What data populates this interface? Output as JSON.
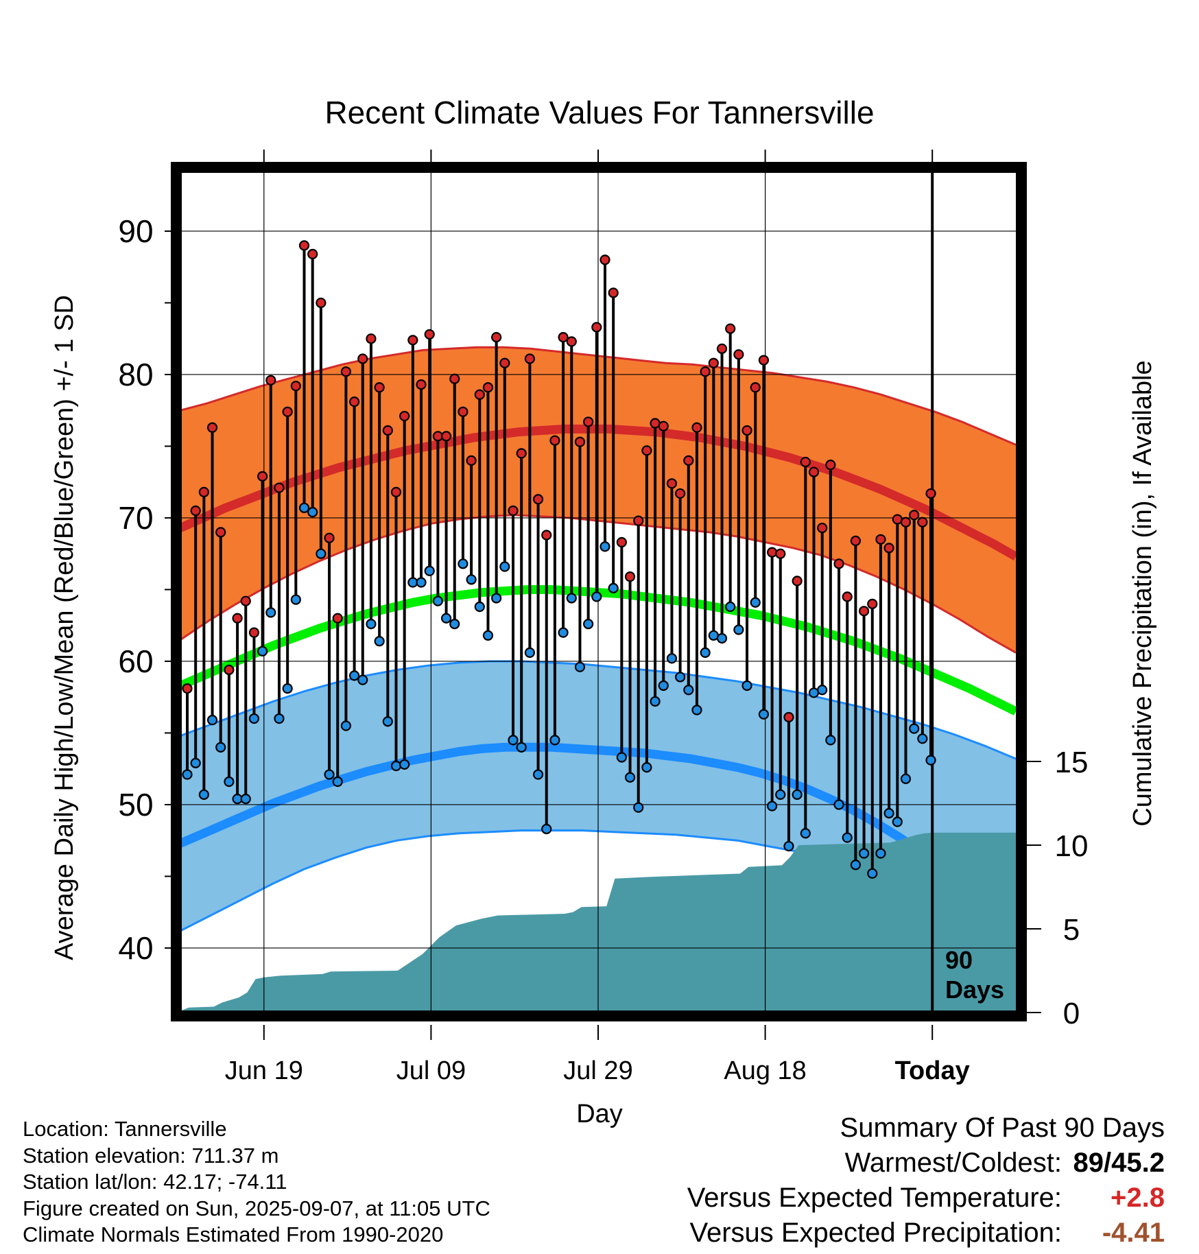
{
  "title": "Recent Climate Values For Tannersville",
  "y_label_left": "Average Daily High/Low/Mean (Red/Blue/Green) +/- 1 SD",
  "y_label_right": "Cumulative Precipitation (in), If Available",
  "x_label": "Day",
  "today_marker": {
    "line1": "90",
    "line2": "Days"
  },
  "info": {
    "location": "Location: Tannersville",
    "elevation": "Station elevation: 711.37 m",
    "latlon": "Station lat/lon: 42.17; -74.11",
    "created": "Figure created on Sun, 2025-09-07, at 11:05 UTC",
    "normals": "Climate Normals Estimated From 1990-2020"
  },
  "summary": {
    "title": "Summary Of Past 90 Days",
    "warm_cold_label": "Warmest/Coldest:",
    "warm_cold_value": "89/45.2",
    "temp_label": "Versus Expected Temperature:",
    "temp_value": "+2.8",
    "precip_label": "Versus Expected Precipitation:",
    "precip_value": "-4.41",
    "temp_color": "#d62728",
    "precip_color": "#a0522d"
  },
  "colors": {
    "high_band": "#f47a30",
    "high_line": "#d42a2a",
    "low_band": "#82c0e6",
    "low_line": "#1c8cff",
    "mean_line": "#00ee00",
    "precip_fill": "#4a9aa5",
    "high_dot": "#d62728",
    "low_dot": "#1f8ce0"
  },
  "chart_data": {
    "type": "line",
    "x_ticks": [
      {
        "label": "Jun 19",
        "day": 10
      },
      {
        "label": "Jul 09",
        "day": 30
      },
      {
        "label": "Jul 29",
        "day": 50
      },
      {
        "label": "Aug 18",
        "day": 70
      },
      {
        "label": "Today",
        "day": 90
      }
    ],
    "xlim": [
      0,
      100
    ],
    "y_left_ticks": [
      40,
      50,
      60,
      70,
      80,
      90
    ],
    "y_left_lim": [
      35.5,
      94.5
    ],
    "y_right_ticks": [
      0,
      5,
      10,
      15
    ],
    "y_right_lim": [
      0,
      40
    ],
    "daily_high": [
      58.1,
      70.5,
      71.8,
      76.3,
      69.0,
      59.4,
      63.0,
      64.2,
      62.0,
      72.9,
      79.6,
      72.1,
      77.4,
      79.2,
      89.0,
      88.4,
      85.0,
      68.6,
      63.0,
      80.2,
      78.1,
      81.1,
      82.5,
      79.1,
      76.1,
      71.8,
      77.1,
      82.4,
      79.3,
      82.8,
      75.7,
      75.7,
      79.7,
      77.4,
      74.0,
      78.6,
      79.1,
      82.6,
      80.8,
      70.5,
      74.5,
      81.1,
      71.3,
      68.8,
      75.4,
      82.6,
      82.3,
      75.3,
      76.7,
      83.3,
      88.0,
      85.7,
      68.3,
      65.9,
      69.8,
      74.7,
      76.6,
      76.4,
      72.4,
      71.7,
      74.0,
      76.3,
      80.2,
      80.8,
      81.8,
      83.2,
      81.4,
      76.1,
      79.1,
      81.0,
      67.6,
      67.5,
      56.1,
      65.6,
      73.9,
      73.2,
      69.3,
      73.7,
      66.8,
      64.5,
      68.4,
      63.5,
      64.0,
      68.5,
      67.9,
      69.9,
      69.7,
      70.2,
      69.7,
      71.7
    ],
    "daily_low": [
      52.1,
      52.9,
      50.7,
      55.9,
      54.0,
      51.6,
      50.4,
      50.4,
      56.0,
      60.7,
      63.4,
      56.0,
      58.1,
      64.3,
      70.7,
      70.4,
      67.5,
      52.1,
      51.6,
      55.5,
      59.0,
      58.7,
      62.6,
      61.4,
      55.8,
      52.7,
      52.8,
      65.5,
      65.5,
      66.3,
      64.2,
      63.0,
      62.6,
      66.8,
      65.7,
      63.8,
      61.8,
      64.4,
      66.6,
      54.5,
      54.0,
      60.6,
      52.1,
      48.3,
      54.5,
      62.0,
      64.4,
      59.6,
      62.6,
      64.5,
      68.0,
      65.1,
      53.3,
      51.9,
      49.8,
      52.6,
      57.2,
      58.3,
      60.2,
      58.9,
      58.0,
      56.6,
      60.6,
      61.8,
      61.6,
      63.8,
      62.2,
      58.3,
      64.1,
      56.3,
      49.9,
      50.7,
      47.1,
      50.7,
      48.0,
      57.8,
      58.0,
      54.5,
      50.0,
      47.7,
      45.8,
      46.6,
      45.2,
      46.6,
      49.4,
      48.8,
      51.8,
      55.3,
      54.6,
      53.1
    ],
    "normal_high": [
      69.3,
      70.0,
      70.7,
      71.3,
      71.9,
      72.5,
      73.0,
      73.5,
      73.9,
      74.3,
      74.7,
      75.0,
      75.3,
      75.6,
      75.8,
      76.0,
      76.1,
      76.2,
      76.2,
      76.2,
      76.1,
      76.0,
      75.8,
      75.6,
      75.3,
      75.0,
      74.6,
      74.2,
      73.7,
      73.2,
      72.6,
      72.0,
      71.3,
      70.6,
      69.8,
      69.0,
      68.2,
      67.3
    ],
    "normal_high_sd_upper": [
      77.5,
      78.0,
      78.6,
      79.2,
      79.7,
      80.2,
      80.7,
      81.1,
      81.4,
      81.7,
      81.8,
      81.9,
      81.9,
      81.8,
      81.6,
      81.4,
      81.2,
      81.0,
      80.8,
      80.7,
      80.5,
      80.3,
      80.1,
      79.8,
      79.5,
      79.1,
      78.6,
      78.0,
      77.4,
      76.7,
      75.9,
      75.1
    ],
    "normal_high_sd_lower": [
      61.5,
      62.8,
      64.0,
      65.1,
      66.1,
      67.0,
      67.8,
      68.5,
      69.1,
      69.6,
      69.9,
      70.1,
      70.2,
      70.1,
      70.0,
      69.8,
      69.6,
      69.4,
      69.2,
      69.0,
      68.7,
      68.3,
      67.9,
      67.4,
      66.7,
      65.9,
      65.0,
      64.0,
      62.9,
      61.7,
      60.6
    ],
    "normal_mean": [
      58.3,
      59.0,
      59.7,
      60.4,
      61.1,
      61.7,
      62.3,
      62.8,
      63.3,
      63.7,
      64.1,
      64.4,
      64.6,
      64.8,
      64.9,
      65.0,
      65.0,
      64.9,
      64.8,
      64.7,
      64.5,
      64.3,
      64.1,
      63.8,
      63.5,
      63.2,
      62.8,
      62.4,
      61.9,
      61.4,
      60.8,
      60.2,
      59.5,
      58.8,
      58.1,
      57.3,
      56.5
    ],
    "normal_low": [
      47.3,
      48.0,
      48.7,
      49.4,
      50.1,
      50.7,
      51.3,
      51.8,
      52.3,
      52.7,
      53.1,
      53.4,
      53.7,
      53.9,
      54.0,
      54.0,
      54.0,
      53.9,
      53.8,
      53.7,
      53.6,
      53.4,
      53.2,
      52.9,
      52.6,
      52.2,
      51.7,
      51.1,
      50.4,
      49.6,
      48.7,
      47.7,
      46.6,
      45.5,
      44.3,
      43.1,
      41.9
    ],
    "normal_low_sd_upper": [
      54.8,
      55.6,
      56.4,
      57.2,
      57.9,
      58.5,
      59.0,
      59.4,
      59.7,
      59.9,
      60.0,
      60.0,
      59.9,
      59.8,
      59.6,
      59.4,
      59.2,
      58.9,
      58.6,
      58.2,
      57.8,
      57.3,
      56.8,
      56.2,
      55.6,
      54.9,
      54.1,
      53.2
    ],
    "normal_low_sd_lower": [
      41.2,
      42.3,
      43.4,
      44.5,
      45.5,
      46.3,
      47.0,
      47.5,
      47.8,
      48.0,
      48.1,
      48.2,
      48.2,
      48.2,
      48.1,
      48.0,
      47.9,
      47.7,
      47.5,
      47.1,
      46.7,
      46.2,
      45.6,
      45.0,
      44.3,
      43.6,
      42.9,
      42.2
    ],
    "precip_cumulative": [
      {
        "day": 0,
        "value": 0.1
      },
      {
        "day": 1,
        "value": 0.3
      },
      {
        "day": 4,
        "value": 0.35
      },
      {
        "day": 5,
        "value": 0.6
      },
      {
        "day": 7,
        "value": 0.9
      },
      {
        "day": 8,
        "value": 1.2
      },
      {
        "day": 9,
        "value": 2.0
      },
      {
        "day": 10,
        "value": 2.1
      },
      {
        "day": 12,
        "value": 2.2
      },
      {
        "day": 17,
        "value": 2.3
      },
      {
        "day": 18,
        "value": 2.45
      },
      {
        "day": 26,
        "value": 2.5
      },
      {
        "day": 29,
        "value": 3.5
      },
      {
        "day": 31,
        "value": 4.5
      },
      {
        "day": 33,
        "value": 5.2
      },
      {
        "day": 36,
        "value": 5.6
      },
      {
        "day": 38,
        "value": 5.8
      },
      {
        "day": 46,
        "value": 5.9
      },
      {
        "day": 47,
        "value": 6.0
      },
      {
        "day": 48,
        "value": 6.3
      },
      {
        "day": 51,
        "value": 6.35
      },
      {
        "day": 52,
        "value": 8.0
      },
      {
        "day": 56,
        "value": 8.1
      },
      {
        "day": 67,
        "value": 8.3
      },
      {
        "day": 68,
        "value": 8.7
      },
      {
        "day": 72,
        "value": 8.8
      },
      {
        "day": 73,
        "value": 9.3
      },
      {
        "day": 74,
        "value": 10.0
      },
      {
        "day": 81,
        "value": 10.1
      },
      {
        "day": 85,
        "value": 10.15
      },
      {
        "day": 86,
        "value": 10.3
      },
      {
        "day": 88,
        "value": 10.6
      },
      {
        "day": 89,
        "value": 10.7
      },
      {
        "day": 90,
        "value": 10.75
      },
      {
        "day": 100,
        "value": 10.75
      }
    ]
  }
}
